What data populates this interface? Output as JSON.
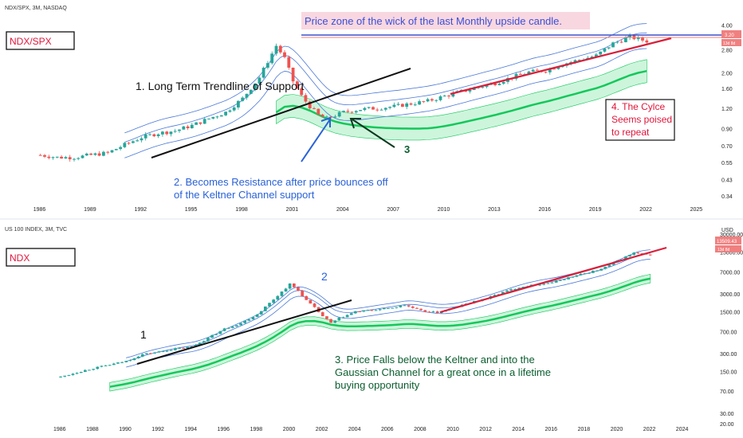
{
  "colors": {
    "up": "#26a69a",
    "down": "#ef5350",
    "keltner": "#4a78d8",
    "gauss_fill": "#6fe39a",
    "gauss_line": "#14c85a",
    "support": "#d81f3a",
    "price_tag": "#f08080",
    "price_line": "#3c50c8"
  },
  "top_panel": {
    "header": "NDX/SPX, 3M, NASDAQ",
    "label_box": "NDX/SPX",
    "price_tag": "3.20",
    "price_tag_sub": "13d 8d",
    "zone_note": "Price zone of the wick of the last Monthly upside candle.",
    "annotation_1": "1. Long Term Trendline of Support",
    "annotation_2_line1": "2. Becomes Resistance after price bounces off",
    "annotation_2_line2": "of the Keltner Channel support",
    "annotation_3": "3",
    "annotation_4_line1": "4. The Cylce",
    "annotation_4_line2": "Seems poised",
    "annotation_4_line3": "to repeat"
  },
  "bottom_panel": {
    "header": "US 100 INDEX, 3M, TVC",
    "unit": "USD",
    "label_box": "NDX",
    "price_tag": "13509.43",
    "price_tag_sub": "13d 8d",
    "annotation_1": "1",
    "annotation_2": "2",
    "annotation_3_line1": "3. Price Falls below the Keltner and into the",
    "annotation_3_line2": "Gaussian Channel for a great once in a lifetime",
    "annotation_3_line3": "buying opportunity"
  },
  "chart_data": [
    {
      "type": "candlestick",
      "title": "NDX/SPX, 3M, NASDAQ",
      "y_scale": "log",
      "ylim": [
        0.3,
        4.5
      ],
      "y_ticks": [
        "4.00",
        "2.80",
        "2.00",
        "1.60",
        "1.20",
        "0.90",
        "0.70",
        "0.55",
        "0.43",
        "0.34"
      ],
      "x_ticks": [
        "1986",
        "1989",
        "1992",
        "1995",
        "1998",
        "2001",
        "2004",
        "2007",
        "2010",
        "2013",
        "2016",
        "2019",
        "2022",
        "2025"
      ],
      "last_value": 3.2,
      "series": [
        {
          "name": "NDX/SPX",
          "x": [
            1986,
            1987,
            1988,
            1989,
            1990,
            1991,
            1992,
            1993,
            1994,
            1995,
            1996,
            1997,
            1998,
            1999,
            2000,
            2000.5,
            2001,
            2001.5,
            2002,
            2002.5,
            2003,
            2004,
            2005,
            2006,
            2007,
            2008,
            2009,
            2010,
            2011,
            2012,
            2013,
            2014,
            2015,
            2016,
            2017,
            2018,
            2019,
            2020,
            2021,
            2022
          ],
          "values": [
            0.62,
            0.6,
            0.6,
            0.62,
            0.64,
            0.72,
            0.8,
            0.85,
            0.88,
            0.95,
            1.05,
            1.15,
            1.4,
            1.9,
            3.0,
            2.5,
            1.8,
            1.45,
            1.25,
            1.1,
            1.05,
            1.15,
            1.2,
            1.22,
            1.25,
            1.3,
            1.35,
            1.45,
            1.55,
            1.65,
            1.75,
            1.9,
            2.05,
            2.1,
            2.3,
            2.45,
            2.6,
            3.1,
            3.4,
            3.2
          ]
        }
      ]
    },
    {
      "type": "candlestick",
      "title": "US 100 INDEX, 3M, TVC",
      "y_scale": "log",
      "ylim": [
        20,
        30000
      ],
      "y_ticks": [
        "30000.00",
        "15000.00",
        "7000.00",
        "3000.00",
        "1500.00",
        "700.00",
        "300.00",
        "150.00",
        "70.00",
        "30.00",
        "20.00"
      ],
      "x_ticks": [
        "1986",
        "1988",
        "1990",
        "1992",
        "1994",
        "1996",
        "1998",
        "2000",
        "2002",
        "2004",
        "2006",
        "2008",
        "2010",
        "2012",
        "2014",
        "2016",
        "2018",
        "2020",
        "2022",
        "2024"
      ],
      "last_value": 13509.43,
      "series": [
        {
          "name": "US 100 INDEX",
          "x": [
            1986,
            1987,
            1988,
            1989,
            1990,
            1991,
            1992,
            1993,
            1994,
            1995,
            1996,
            1997,
            1998,
            1999,
            2000,
            2000.5,
            2001,
            2001.5,
            2002,
            2002.5,
            2003,
            2004,
            2005,
            2006,
            2007,
            2008,
            2009,
            2010,
            2011,
            2012,
            2013,
            2014,
            2015,
            2016,
            2017,
            2018,
            2019,
            2020,
            2021,
            2022
          ],
          "values": [
            125,
            150,
            175,
            200,
            230,
            300,
            330,
            370,
            400,
            560,
            800,
            1000,
            1400,
            2500,
            4500,
            3500,
            2400,
            1800,
            1300,
            1000,
            1200,
            1550,
            1650,
            1750,
            2000,
            1600,
            1500,
            1800,
            2200,
            2600,
            3300,
            4000,
            4400,
            4800,
            5800,
            6800,
            8000,
            11000,
            15000,
            13509
          ]
        }
      ]
    }
  ]
}
